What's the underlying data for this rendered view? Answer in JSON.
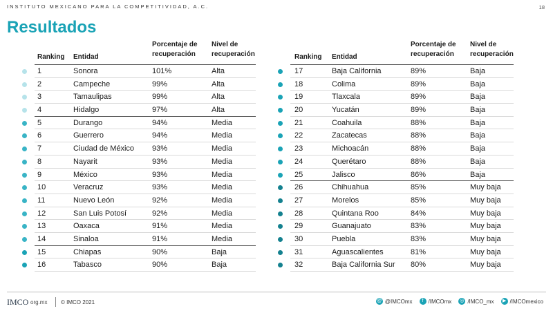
{
  "header": {
    "org": "INSTITUTO MEXICANO PARA LA COMPETITIVIDAD, A.C.",
    "page": "18",
    "title": "Resultados"
  },
  "columns": {
    "ranking": "Ranking",
    "entidad": "Entidad",
    "pct_line1": "Porcentaje de",
    "pct_line2": "recuperación",
    "niv_line1": "Nivel de",
    "niv_line2": "recuperación"
  },
  "level_colors": {
    "Alta": "#b6e3ea",
    "Media": "#39b4c6",
    "Baja": "#1aa3b6",
    "Muy baja": "#14818f"
  },
  "left_rows": [
    {
      "rank": "1",
      "entidad": "Sonora",
      "pct": "101%",
      "nivel": "Alta"
    },
    {
      "rank": "2",
      "entidad": "Campeche",
      "pct": "99%",
      "nivel": "Alta"
    },
    {
      "rank": "3",
      "entidad": "Tamaulipas",
      "pct": "99%",
      "nivel": "Alta"
    },
    {
      "rank": "4",
      "entidad": "Hidalgo",
      "pct": "97%",
      "nivel": "Alta"
    },
    {
      "rank": "5",
      "entidad": "Durango",
      "pct": "94%",
      "nivel": "Media"
    },
    {
      "rank": "6",
      "entidad": "Guerrero",
      "pct": "94%",
      "nivel": "Media"
    },
    {
      "rank": "7",
      "entidad": "Ciudad de México",
      "pct": "93%",
      "nivel": "Media"
    },
    {
      "rank": "8",
      "entidad": "Nayarit",
      "pct": "93%",
      "nivel": "Media"
    },
    {
      "rank": "9",
      "entidad": "México",
      "pct": "93%",
      "nivel": "Media"
    },
    {
      "rank": "10",
      "entidad": "Veracruz",
      "pct": "93%",
      "nivel": "Media"
    },
    {
      "rank": "11",
      "entidad": "Nuevo León",
      "pct": "92%",
      "nivel": "Media"
    },
    {
      "rank": "12",
      "entidad": "San Luis Potosí",
      "pct": "92%",
      "nivel": "Media"
    },
    {
      "rank": "13",
      "entidad": "Oaxaca",
      "pct": "91%",
      "nivel": "Media"
    },
    {
      "rank": "14",
      "entidad": "Sinaloa",
      "pct": "91%",
      "nivel": "Media"
    },
    {
      "rank": "15",
      "entidad": "Chiapas",
      "pct": "90%",
      "nivel": "Baja"
    },
    {
      "rank": "16",
      "entidad": "Tabasco",
      "pct": "90%",
      "nivel": "Baja"
    }
  ],
  "right_rows": [
    {
      "rank": "17",
      "entidad": "Baja California",
      "pct": "89%",
      "nivel": "Baja"
    },
    {
      "rank": "18",
      "entidad": "Colima",
      "pct": "89%",
      "nivel": "Baja"
    },
    {
      "rank": "19",
      "entidad": "Tlaxcala",
      "pct": "89%",
      "nivel": "Baja"
    },
    {
      "rank": "20",
      "entidad": "Yucatán",
      "pct": "89%",
      "nivel": "Baja"
    },
    {
      "rank": "21",
      "entidad": "Coahuila",
      "pct": "88%",
      "nivel": "Baja"
    },
    {
      "rank": "22",
      "entidad": "Zacatecas",
      "pct": "88%",
      "nivel": "Baja"
    },
    {
      "rank": "23",
      "entidad": "Michoacán",
      "pct": "88%",
      "nivel": "Baja"
    },
    {
      "rank": "24",
      "entidad": "Querétaro",
      "pct": "88%",
      "nivel": "Baja"
    },
    {
      "rank": "25",
      "entidad": "Jalisco",
      "pct": "86%",
      "nivel": "Baja"
    },
    {
      "rank": "26",
      "entidad": "Chihuahua",
      "pct": "85%",
      "nivel": "Muy baja"
    },
    {
      "rank": "27",
      "entidad": "Morelos",
      "pct": "85%",
      "nivel": "Muy baja"
    },
    {
      "rank": "28",
      "entidad": "Quintana Roo",
      "pct": "84%",
      "nivel": "Muy baja"
    },
    {
      "rank": "29",
      "entidad": "Guanajuato",
      "pct": "83%",
      "nivel": "Muy baja"
    },
    {
      "rank": "30",
      "entidad": "Puebla",
      "pct": "83%",
      "nivel": "Muy baja"
    },
    {
      "rank": "31",
      "entidad": "Aguascalientes",
      "pct": "81%",
      "nivel": "Muy baja"
    },
    {
      "rank": "32",
      "entidad": "Baja California Sur",
      "pct": "80%",
      "nivel": "Muy baja"
    }
  ],
  "footer": {
    "logo": "IMCO",
    "logo_sub": "org.mx",
    "copyright": "© IMCO 2021",
    "socials": [
      {
        "icon": "at-icon",
        "glyph": "@",
        "label": "@IMCOmx"
      },
      {
        "icon": "facebook-icon",
        "glyph": "f",
        "label": "/IMCOmx"
      },
      {
        "icon": "instagram-icon",
        "glyph": "◎",
        "label": "/IMCO_mx"
      },
      {
        "icon": "youtube-icon",
        "glyph": "▶",
        "label": "/IMCOmexico"
      }
    ]
  }
}
